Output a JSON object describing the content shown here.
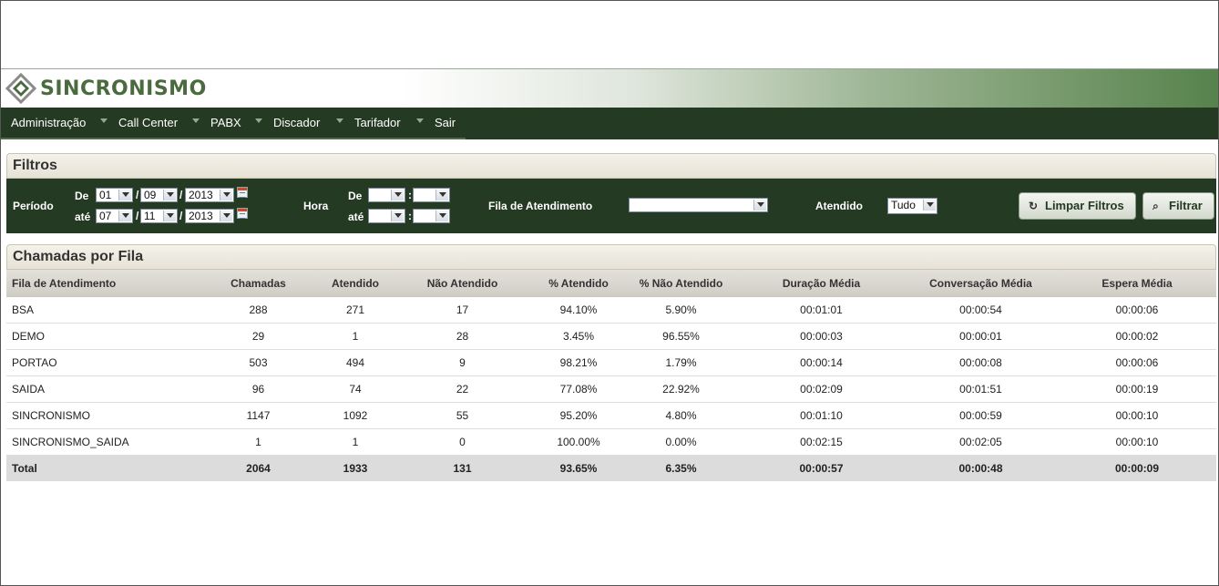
{
  "brand": {
    "name": "SINCRONISMO",
    "colors": {
      "green_dark": "#243a22",
      "green_brand": "#4a6b3e"
    }
  },
  "nav": [
    {
      "label": "Administração"
    },
    {
      "label": "Call Center"
    },
    {
      "label": "PABX"
    },
    {
      "label": "Discador"
    },
    {
      "label": "Tarifador"
    },
    {
      "label": "Sair"
    }
  ],
  "filters": {
    "title": "Filtros",
    "periodo_label": "Período",
    "de_label": "De",
    "ate_label": "até",
    "de": {
      "day": "01",
      "month": "09",
      "year": "2013"
    },
    "ate": {
      "day": "07",
      "month": "11",
      "year": "2013"
    },
    "hora_label": "Hora",
    "hora_de": {
      "hour": "",
      "minute": ""
    },
    "hora_ate": {
      "hour": "",
      "minute": ""
    },
    "fila_label": "Fila de Atendimento",
    "fila_value": "",
    "atendido_label": "Atendido",
    "atendido_value": "Tudo",
    "limpar_label": "Limpar Filtros",
    "filtrar_label": "Filtrar",
    "separator_date": "/",
    "separator_time": ":"
  },
  "report": {
    "title": "Chamadas por Fila",
    "columns": [
      "Fila de Atendimento",
      "Chamadas",
      "Atendido",
      "Não Atendido",
      "% Atendido",
      "% Não Atendido",
      "Duração Média",
      "Conversação Média",
      "Espera Média"
    ],
    "rows": [
      [
        "BSA",
        "288",
        "271",
        "17",
        "94.10%",
        "5.90%",
        "00:01:01",
        "00:00:54",
        "00:00:06"
      ],
      [
        "DEMO",
        "29",
        "1",
        "28",
        "3.45%",
        "96.55%",
        "00:00:03",
        "00:00:01",
        "00:00:02"
      ],
      [
        "PORTAO",
        "503",
        "494",
        "9",
        "98.21%",
        "1.79%",
        "00:00:14",
        "00:00:08",
        "00:00:06"
      ],
      [
        "SAIDA",
        "96",
        "74",
        "22",
        "77.08%",
        "22.92%",
        "00:02:09",
        "00:01:51",
        "00:00:19"
      ],
      [
        "SINCRONISMO",
        "1147",
        "1092",
        "55",
        "95.20%",
        "4.80%",
        "00:01:10",
        "00:00:59",
        "00:00:10"
      ],
      [
        "SINCRONISMO_SAIDA",
        "1",
        "1",
        "0",
        "100.00%",
        "0.00%",
        "00:02:15",
        "00:02:05",
        "00:00:10"
      ]
    ],
    "total": [
      "Total",
      "2064",
      "1933",
      "131",
      "93.65%",
      "6.35%",
      "00:00:57",
      "00:00:48",
      "00:00:09"
    ]
  }
}
